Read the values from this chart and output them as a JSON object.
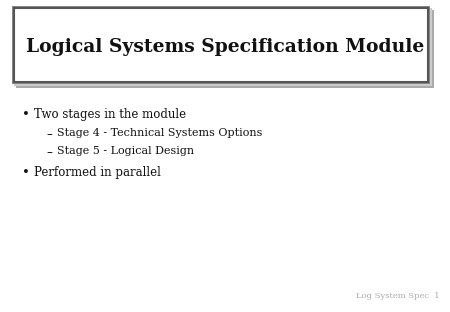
{
  "title": "Logical Systems Specification Module",
  "bullet1": "Two stages in the module",
  "sub1": "Stage 4 - Technical Systems Options",
  "sub2": "Stage 5 - Logical Design",
  "bullet2": "Performed in parallel",
  "footer": "Log System Spec  1",
  "bg_color": "#d4d4d4",
  "slide_bg": "#ffffff",
  "title_box_bg": "#ffffff",
  "title_box_edge_outer": "#aaaaaa",
  "title_box_edge_inner": "#666666",
  "text_color": "#111111",
  "footer_color": "#aaaaaa",
  "title_fontsize": 13.5,
  "body_fontsize": 8.5,
  "footer_fontsize": 6
}
